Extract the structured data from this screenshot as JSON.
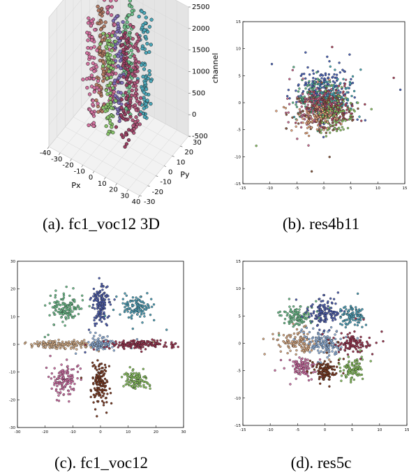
{
  "figure": {
    "captions": {
      "a": "(a). fc1_voc12 3D",
      "b": "(b). res4b11",
      "c": "(c). fc1_voc12",
      "d": "(d). res5c"
    }
  },
  "chart_data": [
    {
      "id": "a",
      "type": "scatter",
      "projection": "3d",
      "title": "",
      "xlabel": "Px",
      "ylabel": "Py",
      "zlabel": "channel",
      "xlim": [
        -40,
        40
      ],
      "ylim": [
        -30,
        30
      ],
      "zlim": [
        -500,
        2500
      ],
      "xticks": [
        "-40",
        "-30",
        "-20",
        "-10",
        "0",
        "10",
        "20",
        "30",
        "40"
      ],
      "yticks": [
        "-30",
        "-20",
        "-10",
        "0",
        "10",
        "20",
        "30"
      ],
      "zticks": [
        "-500",
        "0",
        "500",
        "1000",
        "1500",
        "2000",
        "2500"
      ],
      "grid": true,
      "columns": [
        {
          "px": -15,
          "py": 12,
          "z_range": [
            -50,
            2450
          ],
          "color": "#cc6b94",
          "points": 75
        },
        {
          "px": 0,
          "py": 12,
          "z_range": [
            -50,
            2450
          ],
          "color": "#6fc08a",
          "points": 75
        },
        {
          "px": 15,
          "py": 12,
          "z_range": [
            -50,
            2450
          ],
          "color": "#4aa6b8",
          "points": 75
        },
        {
          "px": -15,
          "py": 0,
          "z_range": [
            -50,
            2450
          ],
          "color": "#b47b64",
          "points": 75
        },
        {
          "px": 0,
          "py": 0,
          "z_range": [
            -50,
            2450
          ],
          "color": "#7f6db5",
          "points": 75
        },
        {
          "px": 15,
          "py": 0,
          "z_range": [
            -50,
            2450
          ],
          "color": "#b0567a",
          "points": 75
        },
        {
          "px": -15,
          "py": -12,
          "z_range": [
            -50,
            2450
          ],
          "color": "#d2729f",
          "points": 75
        },
        {
          "px": 0,
          "py": -12,
          "z_range": [
            -50,
            2450
          ],
          "color": "#88c36b",
          "points": 75
        },
        {
          "px": 15,
          "py": -12,
          "z_range": [
            -50,
            2450
          ],
          "color": "#9a3f62",
          "points": 75
        }
      ]
    },
    {
      "id": "b",
      "type": "scatter",
      "title": "",
      "xlabel": "",
      "ylabel": "",
      "xlim": [
        -15,
        15
      ],
      "ylim": [
        -15,
        15
      ],
      "xticks": [
        -15,
        -10,
        -5,
        0,
        5,
        10,
        15
      ],
      "yticks": [
        -15,
        -10,
        -5,
        0,
        5,
        10,
        15
      ],
      "grid": false,
      "clusters": [
        {
          "x": 0,
          "y": 2,
          "sx": 2.3,
          "sy": 2.0,
          "n": 220,
          "color": "#4a63b8"
        },
        {
          "x": -2,
          "y": 1,
          "sx": 2.1,
          "sy": 1.8,
          "n": 130,
          "color": "#5ab58a"
        },
        {
          "x": 2,
          "y": 1,
          "sx": 2.0,
          "sy": 1.8,
          "n": 110,
          "color": "#46a9b5"
        },
        {
          "x": -1,
          "y": -1,
          "sx": 2.3,
          "sy": 1.9,
          "n": 150,
          "color": "#c86a8e"
        },
        {
          "x": 1,
          "y": -1,
          "sx": 2.1,
          "sy": 1.7,
          "n": 130,
          "color": "#b0455e"
        },
        {
          "x": 0,
          "y": -1.5,
          "sx": 2.5,
          "sy": 1.9,
          "n": 110,
          "color": "#8a5a40"
        },
        {
          "x": 1.5,
          "y": -2.5,
          "sx": 2.0,
          "sy": 1.6,
          "n": 90,
          "color": "#8bc463"
        },
        {
          "x": -1.5,
          "y": -3,
          "sx": 2.0,
          "sy": 1.5,
          "n": 80,
          "color": "#e7a57d"
        }
      ]
    },
    {
      "id": "c",
      "type": "scatter",
      "title": "",
      "xlabel": "",
      "ylabel": "",
      "xlim": [
        -30,
        30
      ],
      "ylim": [
        -30,
        30
      ],
      "xticks": [
        -30,
        -20,
        -10,
        0,
        10,
        20,
        30
      ],
      "yticks": [
        -30,
        -20,
        -10,
        0,
        10,
        20,
        30
      ],
      "grid": false,
      "clusters": [
        {
          "x": -13,
          "y": 13,
          "sx": 2.5,
          "sy": 2.2,
          "n": 130,
          "color": "#6dbf8c"
        },
        {
          "x": 0,
          "y": 14,
          "sx": 1.5,
          "sy": 3.5,
          "n": 150,
          "color": "#4e5fb0"
        },
        {
          "x": 13,
          "y": 13,
          "sx": 2.2,
          "sy": 2.0,
          "n": 110,
          "color": "#4ea0b8"
        },
        {
          "x": -15,
          "y": 0,
          "sx": 6.0,
          "sy": 0.7,
          "n": 170,
          "color": "#d7b08a"
        },
        {
          "x": 0,
          "y": 0,
          "sx": 2.3,
          "sy": 1.2,
          "n": 90,
          "color": "#8fb0da"
        },
        {
          "x": 15,
          "y": 0,
          "sx": 6.0,
          "sy": 0.7,
          "n": 170,
          "color": "#9c3550"
        },
        {
          "x": -13,
          "y": -13,
          "sx": 2.5,
          "sy": 2.5,
          "n": 130,
          "color": "#d070a6"
        },
        {
          "x": 0,
          "y": -14,
          "sx": 1.6,
          "sy": 3.5,
          "n": 150,
          "color": "#7c3a22"
        },
        {
          "x": 13,
          "y": -13,
          "sx": 2.2,
          "sy": 1.8,
          "n": 110,
          "color": "#88c15e"
        }
      ]
    },
    {
      "id": "d",
      "type": "scatter",
      "title": "",
      "xlabel": "",
      "ylabel": "",
      "xlim": [
        -15,
        15
      ],
      "ylim": [
        -15,
        15
      ],
      "xticks": [
        -15,
        -10,
        -5,
        0,
        5,
        10,
        15
      ],
      "yticks": [
        -15,
        -10,
        -5,
        0,
        5,
        10,
        15
      ],
      "grid": false,
      "clusters": [
        {
          "x": -5,
          "y": 5,
          "sx": 1.3,
          "sy": 1.0,
          "n": 110,
          "color": "#6dbf8c"
        },
        {
          "x": 0,
          "y": 5.5,
          "sx": 1.3,
          "sy": 1.1,
          "n": 130,
          "color": "#4e5fb0"
        },
        {
          "x": 5,
          "y": 5,
          "sx": 1.1,
          "sy": 0.9,
          "n": 100,
          "color": "#4ea0b8"
        },
        {
          "x": -5,
          "y": 0,
          "sx": 1.6,
          "sy": 0.9,
          "n": 120,
          "color": "#d7a882"
        },
        {
          "x": 0,
          "y": 0,
          "sx": 1.7,
          "sy": 1.1,
          "n": 140,
          "color": "#8fb0da"
        },
        {
          "x": 5,
          "y": 0,
          "sx": 1.3,
          "sy": 0.9,
          "n": 110,
          "color": "#9c3550"
        },
        {
          "x": -4,
          "y": -4.5,
          "sx": 1.2,
          "sy": 1.0,
          "n": 100,
          "color": "#d070a6"
        },
        {
          "x": 0,
          "y": -5,
          "sx": 1.1,
          "sy": 1.1,
          "n": 120,
          "color": "#7c3a22"
        },
        {
          "x": 5,
          "y": -4.5,
          "sx": 1.0,
          "sy": 1.0,
          "n": 100,
          "color": "#88c15e"
        }
      ]
    }
  ]
}
